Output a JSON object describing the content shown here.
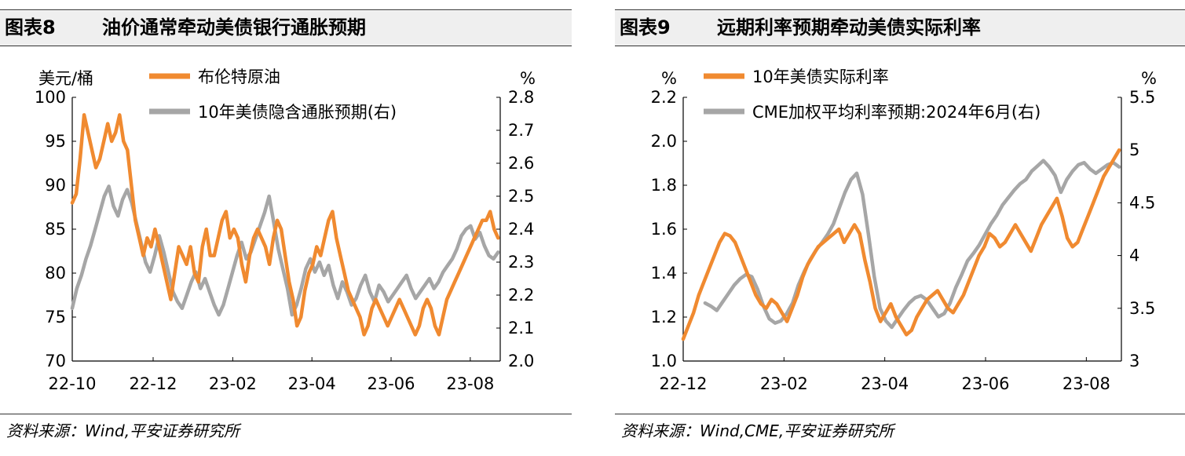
{
  "panels": [
    {
      "fig_no": "图表8",
      "title": "油价通常牵动美债银行通胀预期",
      "source": "资料来源：Wind,平安证券研究所",
      "colors": {
        "primary": "#F08A30",
        "secondary": "#A6A6A6"
      },
      "chart_data": {
        "type": "line",
        "left_unit": "美元/桶",
        "right_unit": "%",
        "left_axis": {
          "ylim": [
            70,
            100
          ],
          "ticks": [
            "100",
            "95",
            "90",
            "85",
            "80",
            "75",
            "70"
          ]
        },
        "right_axis": {
          "ylim": [
            2.0,
            2.8
          ],
          "ticks": [
            "2.8",
            "2.7",
            "2.6",
            "2.5",
            "2.4",
            "2.3",
            "2.2",
            "2.1",
            "2.0"
          ]
        },
        "x_ticks": [
          "22-10",
          "22-12",
          "23-02",
          "23-04",
          "23-06",
          "23-08"
        ],
        "grid": false,
        "legend_position": "top",
        "series": [
          {
            "name": "布伦特原油",
            "axis": "left",
            "color": "#F08A30",
            "values": [
              88,
              89,
              93,
              98,
              96,
              94,
              92,
              93,
              95,
              97,
              95,
              96,
              98,
              95,
              94,
              90,
              86,
              84,
              82,
              84,
              83,
              85,
              83,
              81,
              79,
              77,
              80,
              83,
              82,
              81,
              83,
              80,
              79,
              83,
              85,
              82,
              82,
              84,
              86,
              87,
              84,
              85,
              84,
              81,
              79,
              82,
              84,
              85,
              84,
              83,
              81,
              84,
              86,
              85,
              82,
              79,
              77,
              74,
              75,
              78,
              80,
              81,
              83,
              82,
              84,
              86,
              87,
              84,
              82,
              80,
              78,
              77,
              76,
              75,
              73,
              74,
              76,
              77,
              76,
              75,
              74,
              75,
              76,
              77,
              76,
              75,
              74,
              73,
              74,
              76,
              77,
              76,
              74,
              73,
              75,
              77,
              78,
              79,
              80,
              81,
              82,
              83,
              84,
              85,
              86,
              86,
              87,
              85,
              84
            ]
          },
          {
            "name": "10年美债隐含通胀预期(右)",
            "axis": "right",
            "color": "#A6A6A6",
            "values": [
              2.16,
              2.22,
              2.26,
              2.31,
              2.35,
              2.4,
              2.45,
              2.5,
              2.53,
              2.47,
              2.44,
              2.49,
              2.52,
              2.48,
              2.42,
              2.36,
              2.3,
              2.27,
              2.32,
              2.38,
              2.33,
              2.27,
              2.21,
              2.18,
              2.16,
              2.2,
              2.24,
              2.27,
              2.22,
              2.25,
              2.21,
              2.17,
              2.14,
              2.17,
              2.22,
              2.27,
              2.32,
              2.36,
              2.31,
              2.33,
              2.37,
              2.41,
              2.45,
              2.5,
              2.42,
              2.34,
              2.28,
              2.22,
              2.14,
              2.17,
              2.22,
              2.28,
              2.31,
              2.27,
              2.3,
              2.26,
              2.29,
              2.23,
              2.19,
              2.24,
              2.21,
              2.17,
              2.19,
              2.23,
              2.26,
              2.21,
              2.18,
              2.23,
              2.21,
              2.18,
              2.2,
              2.22,
              2.24,
              2.26,
              2.22,
              2.19,
              2.21,
              2.23,
              2.25,
              2.22,
              2.24,
              2.27,
              2.29,
              2.31,
              2.34,
              2.38,
              2.4,
              2.41,
              2.37,
              2.39,
              2.35,
              2.32,
              2.31,
              2.33
            ]
          }
        ]
      }
    },
    {
      "fig_no": "图表9",
      "title": "远期利率预期牵动美债实际利率",
      "source": "资料来源：Wind,CME,平安证券研究所",
      "colors": {
        "primary": "#F08A30",
        "secondary": "#A6A6A6"
      },
      "chart_data": {
        "type": "line",
        "left_unit": "%",
        "right_unit": "%",
        "left_axis": {
          "ylim": [
            1.0,
            2.2
          ],
          "ticks": [
            "2.2",
            "2.0",
            "1.8",
            "1.6",
            "1.4",
            "1.2",
            "1.0"
          ]
        },
        "right_axis": {
          "ylim": [
            3.0,
            5.5
          ],
          "ticks": [
            "5.5",
            "5",
            "4.5",
            "4",
            "3.5",
            "3"
          ]
        },
        "x_ticks": [
          "22-12",
          "23-02",
          "23-04",
          "23-06",
          "23-08"
        ],
        "grid": false,
        "legend_position": "top",
        "series": [
          {
            "name": "10年美债实际利率",
            "axis": "left",
            "color": "#F08A30",
            "values": [
              1.1,
              1.16,
              1.22,
              1.3,
              1.36,
              1.42,
              1.48,
              1.54,
              1.58,
              1.57,
              1.54,
              1.48,
              1.42,
              1.36,
              1.3,
              1.26,
              1.24,
              1.28,
              1.26,
              1.22,
              1.18,
              1.24,
              1.3,
              1.38,
              1.44,
              1.48,
              1.52,
              1.54,
              1.56,
              1.58,
              1.6,
              1.54,
              1.58,
              1.62,
              1.58,
              1.46,
              1.36,
              1.24,
              1.18,
              1.22,
              1.26,
              1.2,
              1.16,
              1.12,
              1.14,
              1.2,
              1.24,
              1.28,
              1.3,
              1.32,
              1.28,
              1.24,
              1.22,
              1.26,
              1.3,
              1.36,
              1.42,
              1.48,
              1.52,
              1.58,
              1.56,
              1.52,
              1.54,
              1.58,
              1.62,
              1.58,
              1.54,
              1.5,
              1.56,
              1.62,
              1.66,
              1.7,
              1.74,
              1.66,
              1.56,
              1.52,
              1.54,
              1.6,
              1.66,
              1.72,
              1.78,
              1.84,
              1.88,
              1.92,
              1.96
            ]
          },
          {
            "name": "CME加权平均利率预期:2024年6月(右)",
            "axis": "right",
            "color": "#A6A6A6",
            "values": [
              3.55,
              3.52,
              3.48,
              3.56,
              3.64,
              3.72,
              3.78,
              3.82,
              3.8,
              3.68,
              3.52,
              3.4,
              3.36,
              3.38,
              3.45,
              3.55,
              3.72,
              3.85,
              3.96,
              4.05,
              4.12,
              4.2,
              4.3,
              4.45,
              4.6,
              4.72,
              4.78,
              4.58,
              4.2,
              3.8,
              3.5,
              3.38,
              3.32,
              3.4,
              3.48,
              3.55,
              3.6,
              3.62,
              3.58,
              3.5,
              3.42,
              3.45,
              3.55,
              3.7,
              3.82,
              3.95,
              4.02,
              4.1,
              4.2,
              4.3,
              4.38,
              4.48,
              4.55,
              4.62,
              4.68,
              4.72,
              4.8,
              4.85,
              4.9,
              4.84,
              4.76,
              4.6,
              4.72,
              4.8,
              4.86,
              4.88,
              4.82,
              4.78,
              4.82,
              4.86,
              4.88,
              4.84
            ]
          }
        ]
      }
    }
  ]
}
